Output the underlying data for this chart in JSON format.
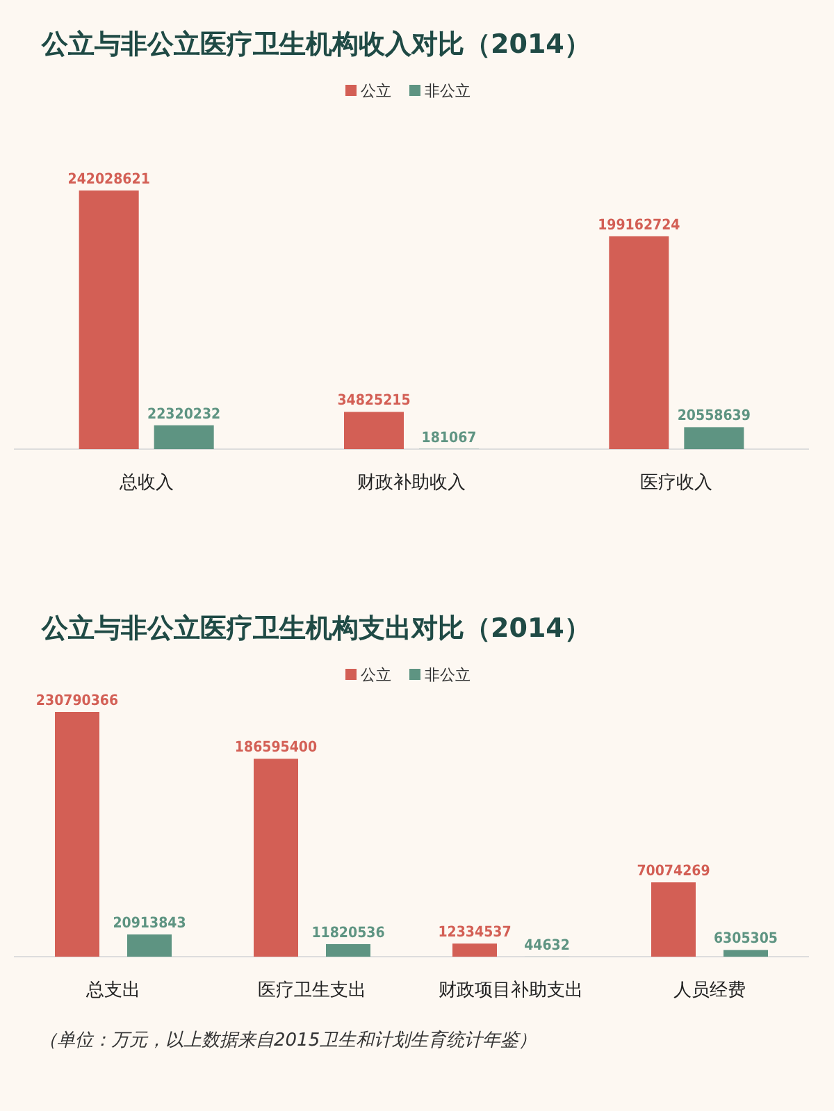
{
  "chart_data": [
    {
      "type": "bar",
      "title": "公立与非公立医疗卫生机构收入对比（2014）",
      "categories": [
        "总收入",
        "财政补助收入",
        "医疗收入"
      ],
      "legend": "top",
      "data_labels": true,
      "series": [
        {
          "name": "公立",
          "color": "#d35f55",
          "values": [
            242028621,
            34825215,
            199162724
          ]
        },
        {
          "name": "非公立",
          "color": "#5e9482",
          "values": [
            22320232,
            181067,
            20558639
          ]
        }
      ]
    },
    {
      "type": "bar",
      "title": "公立与非公立医疗卫生机构支出对比（2014）",
      "categories": [
        "总支出",
        "医疗卫生支出",
        "财政项目补助支出",
        "人员经费"
      ],
      "legend": "top",
      "data_labels": true,
      "series": [
        {
          "name": "公立",
          "color": "#d35f55",
          "values": [
            230790366,
            186595400,
            12334537,
            70074269
          ]
        },
        {
          "name": "非公立",
          "color": "#5e9482",
          "values": [
            20913843,
            11820536,
            44632,
            6305305
          ]
        }
      ],
      "annotations": [
        "（单位：万元，以上数据来自2015卫生和计划生育统计年鉴）"
      ]
    }
  ]
}
